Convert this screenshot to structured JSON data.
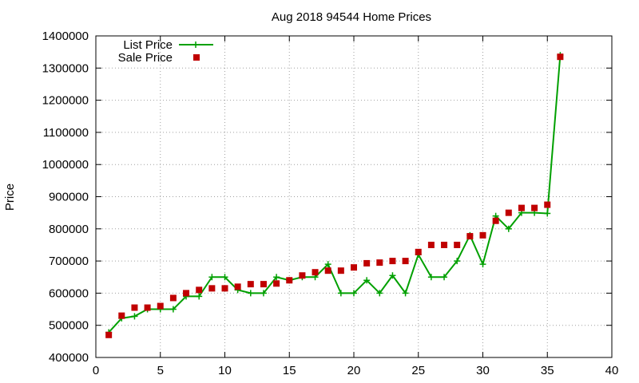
{
  "chart_data": {
    "type": "line",
    "title": "Aug 2018 94544 Home Prices",
    "xlabel": "",
    "ylabel": "Price",
    "xlim": [
      0,
      40
    ],
    "ylim": [
      400000,
      1400000
    ],
    "xticks": [
      0,
      5,
      10,
      15,
      20,
      25,
      30,
      35,
      40
    ],
    "yticks": [
      400000,
      500000,
      600000,
      700000,
      800000,
      900000,
      1000000,
      1100000,
      1200000,
      1300000,
      1400000
    ],
    "grid": true,
    "legend_position": "top-left",
    "series": [
      {
        "name": "List Price",
        "style": "line-with-plus-markers",
        "color": "#00a000",
        "x": [
          1,
          2,
          3,
          4,
          5,
          6,
          7,
          8,
          9,
          10,
          11,
          12,
          13,
          14,
          15,
          16,
          17,
          18,
          19,
          20,
          21,
          22,
          23,
          24,
          25,
          26,
          27,
          28,
          29,
          30,
          31,
          32,
          33,
          34,
          35,
          36
        ],
        "values": [
          478000,
          522000,
          528000,
          550000,
          550000,
          550000,
          590000,
          590000,
          650000,
          650000,
          610000,
          600000,
          600000,
          650000,
          640000,
          650000,
          650000,
          690000,
          600000,
          600000,
          640000,
          600000,
          655000,
          600000,
          720000,
          650000,
          650000,
          700000,
          780000,
          690000,
          840000,
          800000,
          850000,
          850000,
          848000,
          1340000
        ]
      },
      {
        "name": "Sale Price",
        "style": "square-markers",
        "color": "#c00000",
        "x": [
          1,
          2,
          3,
          4,
          5,
          6,
          7,
          8,
          9,
          10,
          11,
          12,
          13,
          14,
          15,
          16,
          17,
          18,
          19,
          20,
          21,
          22,
          23,
          24,
          25,
          26,
          27,
          28,
          29,
          30,
          31,
          32,
          33,
          34,
          35,
          36
        ],
        "values": [
          470000,
          530000,
          555000,
          555000,
          560000,
          585000,
          600000,
          610000,
          615000,
          615000,
          620000,
          628000,
          628000,
          630000,
          640000,
          655000,
          665000,
          670000,
          670000,
          680000,
          693000,
          695000,
          700000,
          700000,
          728000,
          750000,
          750000,
          750000,
          777000,
          780000,
          825000,
          850000,
          865000,
          865000,
          875000,
          1335000
        ]
      }
    ]
  }
}
